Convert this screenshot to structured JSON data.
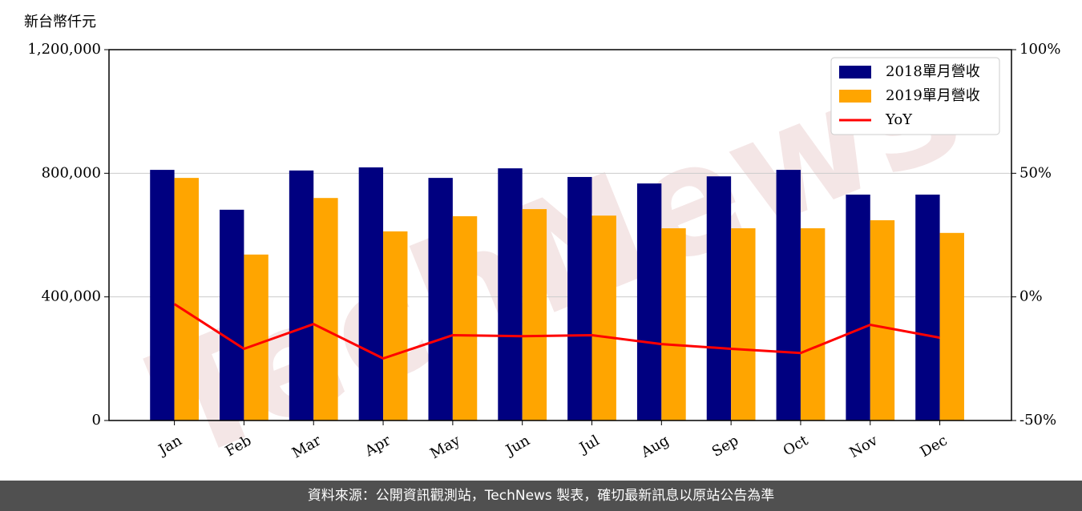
{
  "chart_data": {
    "type": "bar_line",
    "y_unit_label": "新台幣仟元",
    "watermark": "TechNews",
    "categories": [
      "Jan",
      "Feb",
      "Mar",
      "Apr",
      "May",
      "Jun",
      "Jul",
      "Aug",
      "Sep",
      "Oct",
      "Nov",
      "Dec"
    ],
    "series": [
      {
        "name": "2018單月營收",
        "type": "bar",
        "color": "#000080",
        "values": [
          811000,
          682000,
          809000,
          819000,
          785000,
          816000,
          788000,
          767000,
          790000,
          811000,
          731000,
          731000
        ]
      },
      {
        "name": "2019單月營收",
        "type": "bar",
        "color": "#ffa500",
        "values": [
          785000,
          537000,
          720000,
          612000,
          661000,
          684000,
          663000,
          622000,
          622000,
          622000,
          648000,
          607000
        ]
      },
      {
        "name": "YoY",
        "type": "line",
        "axis": "y2",
        "color": "#ff0000",
        "values": [
          -2.9,
          -21.0,
          -11.0,
          -24.9,
          -15.5,
          -15.9,
          -15.5,
          -19.1,
          -21.0,
          -22.7,
          -11.3,
          -16.5
        ]
      }
    ],
    "ylim": [
      0,
      1200000
    ],
    "yticks": [
      0,
      {
        "value": 400000,
        "label": "400,000"
      },
      {
        "value": 800000,
        "label": "800,000"
      },
      {
        "value": 1200000,
        "label": "1,200,000"
      }
    ],
    "y2lim": [
      -50,
      100
    ],
    "y2ticks": [
      {
        "value": -50,
        "label": "-50%"
      },
      {
        "value": 0,
        "label": "0%"
      },
      {
        "value": 50,
        "label": "50%"
      },
      {
        "value": 100,
        "label": "100%"
      }
    ],
    "grid": true,
    "legend": "upper right",
    "footer": "資料來源：公開資訊觀測站，TechNews 製表，確切最新訊息以原站公告為準"
  }
}
